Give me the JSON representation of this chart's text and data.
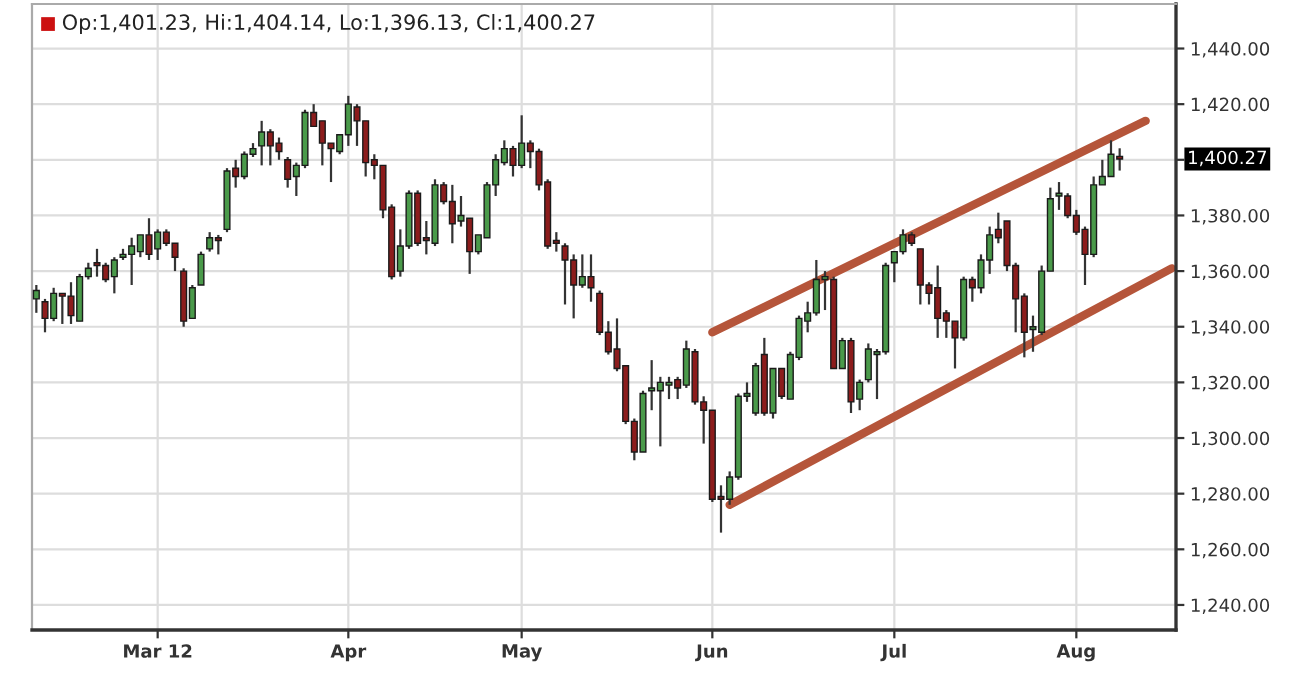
{
  "chart_data": {
    "type": "candlestick",
    "categories": [
      null,
      null,
      null,
      null,
      null,
      null,
      null,
      null,
      null,
      null,
      null,
      null,
      null,
      null,
      "Mar 12",
      null,
      null,
      null,
      null,
      null,
      null,
      null,
      null,
      null,
      null,
      null,
      null,
      null,
      null,
      null,
      null,
      null,
      null,
      null,
      null,
      null,
      "Apr",
      null,
      null,
      null,
      null,
      null,
      null,
      null,
      null,
      null,
      null,
      null,
      null,
      null,
      null,
      null,
      null,
      null,
      null,
      null,
      "May",
      null,
      null,
      null,
      null,
      null,
      null,
      null,
      null,
      null,
      null,
      null,
      null,
      null,
      null,
      null,
      null,
      null,
      null,
      null,
      null,
      null,
      "Jun",
      null,
      null,
      null,
      null,
      null,
      null,
      null,
      null,
      null,
      null,
      null,
      null,
      null,
      null,
      null,
      null,
      null,
      null,
      null,
      null,
      "Jul",
      null,
      null,
      null,
      null,
      null,
      null,
      null,
      null,
      null,
      null,
      null,
      null,
      null,
      null,
      null,
      null,
      null,
      null,
      null,
      null,
      "Aug",
      null,
      null,
      null,
      null,
      null,
      null,
      null,
      null,
      null,
      null,
      null
    ],
    "ohlc": [
      [
        1350,
        1355,
        1345,
        1353
      ],
      [
        1349,
        1350,
        1338,
        1343
      ],
      [
        1343,
        1354,
        1342,
        1352
      ],
      [
        1352,
        1352,
        1341,
        1351
      ],
      [
        1351,
        1356,
        1341,
        1344
      ],
      [
        1342,
        1359,
        1342,
        1358
      ],
      [
        1358,
        1363,
        1357,
        1361
      ],
      [
        1363,
        1368,
        1358,
        1362
      ],
      [
        1362,
        1363,
        1356,
        1357
      ],
      [
        1358,
        1365,
        1352,
        1364
      ],
      [
        1365,
        1368,
        1364,
        1366
      ],
      [
        1366,
        1372,
        1355,
        1369
      ],
      [
        1367,
        1373,
        1365,
        1373
      ],
      [
        1373,
        1379,
        1364,
        1366
      ],
      [
        1368,
        1375,
        1364,
        1374
      ],
      [
        1374,
        1375,
        1369,
        1370
      ],
      [
        1370,
        1370,
        1360,
        1365
      ],
      [
        1360,
        1361,
        1340,
        1342
      ],
      [
        1343,
        1355,
        1343,
        1354
      ],
      [
        1355,
        1367,
        1355,
        1366
      ],
      [
        1368,
        1374,
        1367,
        1372
      ],
      [
        1372,
        1373,
        1366,
        1371
      ],
      [
        1375,
        1397,
        1374,
        1396
      ],
      [
        1397,
        1400,
        1390,
        1394
      ],
      [
        1394,
        1403,
        1393,
        1402
      ],
      [
        1402,
        1406,
        1401,
        1404
      ],
      [
        1405,
        1414,
        1398,
        1410
      ],
      [
        1410,
        1411,
        1398,
        1405
      ],
      [
        1406,
        1408,
        1400,
        1403
      ],
      [
        1400,
        1401,
        1390,
        1393
      ],
      [
        1394,
        1399,
        1387,
        1398
      ],
      [
        1398,
        1418,
        1397,
        1417
      ],
      [
        1417,
        1420,
        1412,
        1412
      ],
      [
        1414,
        1414,
        1398,
        1406
      ],
      [
        1406,
        1406,
        1392,
        1404
      ],
      [
        1403,
        1409,
        1402,
        1409
      ],
      [
        1409,
        1423,
        1405,
        1420
      ],
      [
        1419,
        1420,
        1405,
        1414
      ],
      [
        1414,
        1414,
        1394,
        1399
      ],
      [
        1400,
        1402,
        1393,
        1398
      ],
      [
        1398,
        1398,
        1379,
        1382
      ],
      [
        1383,
        1384,
        1357,
        1358
      ],
      [
        1360,
        1375,
        1358,
        1369
      ],
      [
        1369,
        1389,
        1368,
        1388
      ],
      [
        1388,
        1389,
        1369,
        1370
      ],
      [
        1372,
        1378,
        1366,
        1371
      ],
      [
        1370,
        1393,
        1369,
        1391
      ],
      [
        1391,
        1392,
        1384,
        1385
      ],
      [
        1385,
        1391,
        1370,
        1377
      ],
      [
        1378,
        1387,
        1376,
        1380
      ],
      [
        1379,
        1379,
        1359,
        1367
      ],
      [
        1367,
        1373,
        1366,
        1373
      ],
      [
        1372,
        1392,
        1372,
        1391
      ],
      [
        1391,
        1402,
        1387,
        1400
      ],
      [
        1399,
        1407,
        1398,
        1404
      ],
      [
        1404,
        1405,
        1394,
        1398
      ],
      [
        1398,
        1416,
        1397,
        1406
      ],
      [
        1406,
        1407,
        1397,
        1403
      ],
      [
        1403,
        1404,
        1389,
        1391
      ],
      [
        1392,
        1393,
        1368,
        1369
      ],
      [
        1371,
        1374,
        1367,
        1370
      ],
      [
        1369,
        1370,
        1348,
        1364
      ],
      [
        1364,
        1366,
        1343,
        1355
      ],
      [
        1355,
        1366,
        1354,
        1358
      ],
      [
        1358,
        1366,
        1349,
        1354
      ],
      [
        1352,
        1353,
        1337,
        1338
      ],
      [
        1338,
        1342,
        1330,
        1331
      ],
      [
        1332,
        1343,
        1324,
        1325
      ],
      [
        1326,
        1326,
        1305,
        1306
      ],
      [
        1306,
        1307,
        1292,
        1295
      ],
      [
        1295,
        1317,
        1295,
        1316
      ],
      [
        1317,
        1328,
        1310,
        1318
      ],
      [
        1317,
        1322,
        1297,
        1320
      ],
      [
        1319,
        1322,
        1314,
        1320
      ],
      [
        1321,
        1322,
        1314,
        1318
      ],
      [
        1319,
        1335,
        1318,
        1332
      ],
      [
        1331,
        1332,
        1312,
        1313
      ],
      [
        1313,
        1315,
        1298,
        1310
      ],
      [
        1310,
        1310,
        1277,
        1278
      ],
      [
        1279,
        1283,
        1266,
        1278
      ],
      [
        1278,
        1288,
        1276,
        1286
      ],
      [
        1286,
        1316,
        1285,
        1315
      ],
      [
        1315,
        1320,
        1313,
        1316
      ],
      [
        1309,
        1327,
        1308,
        1326
      ],
      [
        1330,
        1336,
        1308,
        1309
      ],
      [
        1309,
        1325,
        1307,
        1325
      ],
      [
        1325,
        1325,
        1314,
        1315
      ],
      [
        1314,
        1331,
        1314,
        1330
      ],
      [
        1329,
        1344,
        1328,
        1343
      ],
      [
        1342,
        1349,
        1338,
        1345
      ],
      [
        1345,
        1364,
        1344,
        1357
      ],
      [
        1357,
        1360,
        1346,
        1358
      ],
      [
        1357,
        1358,
        1325,
        1325
      ],
      [
        1325,
        1336,
        1325,
        1335
      ],
      [
        1335,
        1336,
        1309,
        1313
      ],
      [
        1314,
        1321,
        1310,
        1320
      ],
      [
        1321,
        1334,
        1320,
        1332
      ],
      [
        1330,
        1332,
        1314,
        1331
      ],
      [
        1331,
        1363,
        1330,
        1362
      ],
      [
        1363,
        1367,
        1356,
        1367
      ],
      [
        1367,
        1375,
        1366,
        1373
      ],
      [
        1373,
        1374,
        1369,
        1370
      ],
      [
        1368,
        1368,
        1348,
        1355
      ],
      [
        1355,
        1356,
        1348,
        1352
      ],
      [
        1354,
        1362,
        1336,
        1343
      ],
      [
        1345,
        1346,
        1336,
        1342
      ],
      [
        1342,
        1342,
        1325,
        1336
      ],
      [
        1336,
        1358,
        1335,
        1357
      ],
      [
        1357,
        1358,
        1349,
        1354
      ],
      [
        1354,
        1366,
        1352,
        1364
      ],
      [
        1364,
        1376,
        1359,
        1373
      ],
      [
        1375,
        1381,
        1370,
        1372
      ],
      [
        1378,
        1378,
        1360,
        1362
      ],
      [
        1362,
        1363,
        1338,
        1350
      ],
      [
        1351,
        1352,
        1329,
        1338
      ],
      [
        1339,
        1344,
        1331,
        1340
      ],
      [
        1338,
        1362,
        1337,
        1360
      ],
      [
        1360,
        1390,
        1360,
        1386
      ],
      [
        1387,
        1392,
        1382,
        1388
      ],
      [
        1387,
        1388,
        1379,
        1380
      ],
      [
        1380,
        1382,
        1373,
        1374
      ],
      [
        1375,
        1376,
        1355,
        1366
      ],
      [
        1366,
        1394,
        1365,
        1391
      ],
      [
        1391,
        1400,
        1391,
        1394
      ],
      [
        1394,
        1407,
        1394,
        1402
      ],
      [
        1401.23,
        1404.14,
        1396.13,
        1400.27
      ],
      null,
      null,
      null,
      null,
      null,
      null
    ],
    "colors": [
      "#4a9a4a",
      "#8c1c1c",
      "#4a9a4a",
      "#8c1c1c",
      "#8c1c1c",
      "#4a9a4a",
      "#4a9a4a",
      "#8c1c1c",
      "#8c1c1c",
      "#4a9a4a",
      "#4a9a4a",
      "#4a9a4a",
      "#4a9a4a",
      "#8c1c1c",
      "#4a9a4a",
      "#8c1c1c",
      "#8c1c1c",
      "#8c1c1c",
      "#4a9a4a",
      "#4a9a4a",
      "#4a9a4a",
      "#8c1c1c",
      "#4a9a4a",
      "#8c1c1c",
      "#4a9a4a",
      "#4a9a4a",
      "#4a9a4a",
      "#8c1c1c",
      "#8c1c1c",
      "#8c1c1c",
      "#4a9a4a",
      "#4a9a4a",
      "#8c1c1c",
      "#8c1c1c",
      "#8c1c1c",
      "#4a9a4a",
      "#4a9a4a",
      "#8c1c1c",
      "#8c1c1c",
      "#8c1c1c",
      "#8c1c1c",
      "#8c1c1c",
      "#4a9a4a",
      "#4a9a4a",
      "#8c1c1c",
      "#8c1c1c",
      "#4a9a4a",
      "#8c1c1c",
      "#8c1c1c",
      "#4a9a4a",
      "#8c1c1c",
      "#4a9a4a",
      "#4a9a4a",
      "#4a9a4a",
      "#4a9a4a",
      "#8c1c1c",
      "#4a9a4a",
      "#8c1c1c",
      "#8c1c1c",
      "#8c1c1c",
      "#8c1c1c",
      "#8c1c1c",
      "#8c1c1c",
      "#4a9a4a",
      "#8c1c1c",
      "#8c1c1c",
      "#8c1c1c",
      "#8c1c1c",
      "#8c1c1c",
      "#8c1c1c",
      "#4a9a4a",
      "#4a9a4a",
      "#4a9a4a",
      "#4a9a4a",
      "#8c1c1c",
      "#4a9a4a",
      "#8c1c1c",
      "#8c1c1c",
      "#8c1c1c",
      "#8c1c1c",
      "#4a9a4a",
      "#4a9a4a",
      "#4a9a4a",
      "#4a9a4a",
      "#8c1c1c",
      "#4a9a4a",
      "#8c1c1c",
      "#4a9a4a",
      "#4a9a4a",
      "#4a9a4a",
      "#4a9a4a",
      "#4a9a4a",
      "#8c1c1c",
      "#4a9a4a",
      "#8c1c1c",
      "#4a9a4a",
      "#4a9a4a",
      "#4a9a4a",
      "#4a9a4a",
      "#4a9a4a",
      "#4a9a4a",
      "#8c1c1c",
      "#8c1c1c",
      "#8c1c1c",
      "#8c1c1c",
      "#8c1c1c",
      "#8c1c1c",
      "#4a9a4a",
      "#8c1c1c",
      "#4a9a4a",
      "#4a9a4a",
      "#8c1c1c",
      "#8c1c1c",
      "#8c1c1c",
      "#8c1c1c",
      "#4a9a4a",
      "#4a9a4a",
      "#4a9a4a",
      "#4a9a4a",
      "#8c1c1c",
      "#8c1c1c",
      "#8c1c1c",
      "#4a9a4a",
      "#4a9a4a",
      "#4a9a4a",
      "#8c1c1c",
      null,
      null,
      null,
      null,
      null,
      null
    ],
    "series": [
      {
        "type": "line",
        "color": "#b5553a",
        "values": [
          null,
          null,
          null,
          null,
          null,
          null,
          null,
          null,
          null,
          null,
          null,
          null,
          null,
          null,
          null,
          null,
          null,
          null,
          null,
          null,
          null,
          null,
          null,
          null,
          null,
          null,
          null,
          null,
          null,
          null,
          null,
          null,
          null,
          null,
          null,
          null,
          null,
          null,
          null,
          null,
          null,
          null,
          null,
          null,
          null,
          null,
          null,
          null,
          null,
          null,
          null,
          null,
          null,
          null,
          null,
          null,
          null,
          null,
          null,
          null,
          null,
          null,
          null,
          null,
          null,
          null,
          null,
          null,
          null,
          null,
          null,
          null,
          null,
          null,
          null,
          null,
          null,
          null,
          1338,
          null,
          null,
          null,
          null,
          null,
          null,
          null,
          null,
          null,
          null,
          null,
          null,
          null,
          null,
          null,
          null,
          null,
          null,
          null,
          null,
          null,
          null,
          null,
          null,
          null,
          null,
          null,
          null,
          null,
          null,
          null,
          null,
          null,
          null,
          null,
          null,
          null,
          null,
          null,
          null,
          null,
          null,
          null,
          null,
          null,
          null,
          null,
          null,
          null,
          1414,
          null,
          null,
          null
        ]
      },
      {
        "type": "line",
        "color": "#b5553a",
        "values": [
          null,
          null,
          null,
          null,
          null,
          null,
          null,
          null,
          null,
          null,
          null,
          null,
          null,
          null,
          null,
          null,
          null,
          null,
          null,
          null,
          null,
          null,
          null,
          null,
          null,
          null,
          null,
          null,
          null,
          null,
          null,
          null,
          null,
          null,
          null,
          null,
          null,
          null,
          null,
          null,
          null,
          null,
          null,
          null,
          null,
          null,
          null,
          null,
          null,
          null,
          null,
          null,
          null,
          null,
          null,
          null,
          null,
          null,
          null,
          null,
          null,
          null,
          null,
          null,
          null,
          null,
          null,
          null,
          null,
          null,
          null,
          null,
          null,
          null,
          null,
          null,
          null,
          null,
          null,
          null,
          1276,
          null,
          null,
          null,
          null,
          null,
          null,
          null,
          null,
          null,
          null,
          null,
          null,
          null,
          null,
          null,
          null,
          null,
          null,
          null,
          null,
          null,
          null,
          null,
          null,
          null,
          null,
          null,
          null,
          null,
          null,
          null,
          null,
          null,
          null,
          null,
          null,
          null,
          null,
          null,
          null,
          null,
          null,
          null,
          null,
          null,
          null,
          null,
          null,
          null,
          null,
          1361
        ]
      }
    ],
    "ylim": [
      1231,
      1456
    ],
    "yticks": [
      {
        "value": 1240,
        "label": "1,240.00"
      },
      {
        "value": 1260,
        "label": "1,260.00"
      },
      {
        "value": 1280,
        "label": "1,280.00"
      },
      {
        "value": 1300,
        "label": "1,300.00"
      },
      {
        "value": 1320,
        "label": "1,320.00"
      },
      {
        "value": 1340,
        "label": "1,340.00"
      },
      {
        "value": 1360,
        "label": "1,360.00"
      },
      {
        "value": 1380,
        "label": "1,380.00"
      },
      {
        "value": 1400,
        "label": null
      },
      {
        "value": 1420,
        "label": "1,420.00"
      },
      {
        "value": 1440,
        "label": "1,440.00"
      }
    ],
    "grid": true,
    "annotations": [
      "Op:1,401.23, Hi:1,404.14, Lo:1,396.13, Cl:1,400.27",
      "1,400.27"
    ]
  }
}
